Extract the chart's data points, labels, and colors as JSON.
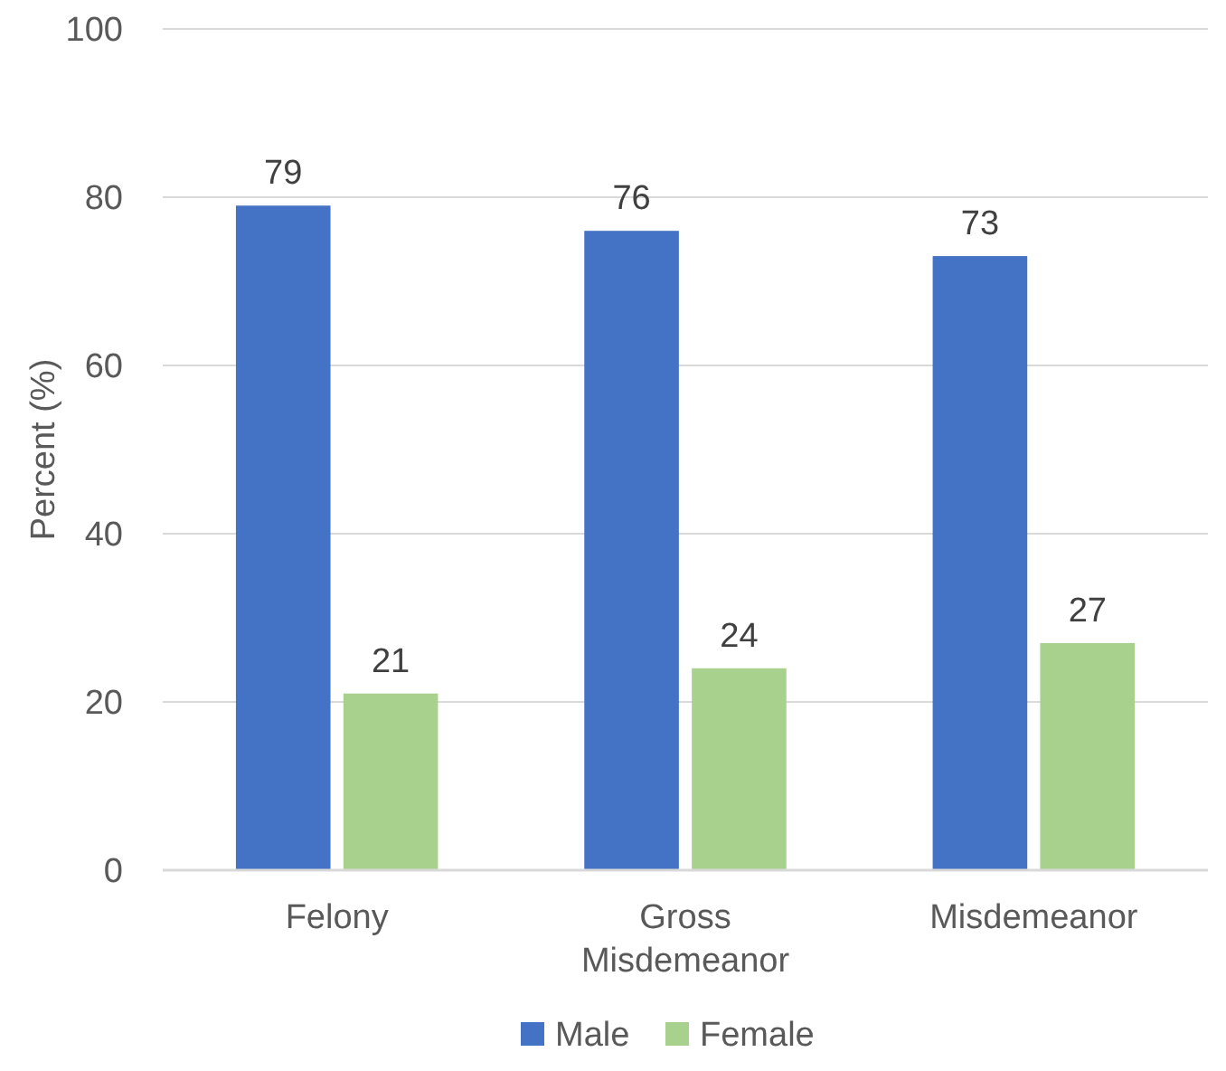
{
  "chart_data": {
    "type": "bar",
    "ylabel": "Percent (%)",
    "categories": [
      "Felony",
      "Gross Misdemeanor",
      "Misdemeanor"
    ],
    "series": [
      {
        "name": "Male",
        "color": "#4472c4",
        "values": [
          79,
          76,
          73
        ]
      },
      {
        "name": "Female",
        "color": "#a9d18e",
        "values": [
          21,
          24,
          27
        ]
      }
    ],
    "ylim": [
      0,
      100
    ],
    "yticks": [
      0,
      20,
      40,
      60,
      80,
      100
    ],
    "grid": "y",
    "legend": "bottom",
    "data_labels": true
  }
}
